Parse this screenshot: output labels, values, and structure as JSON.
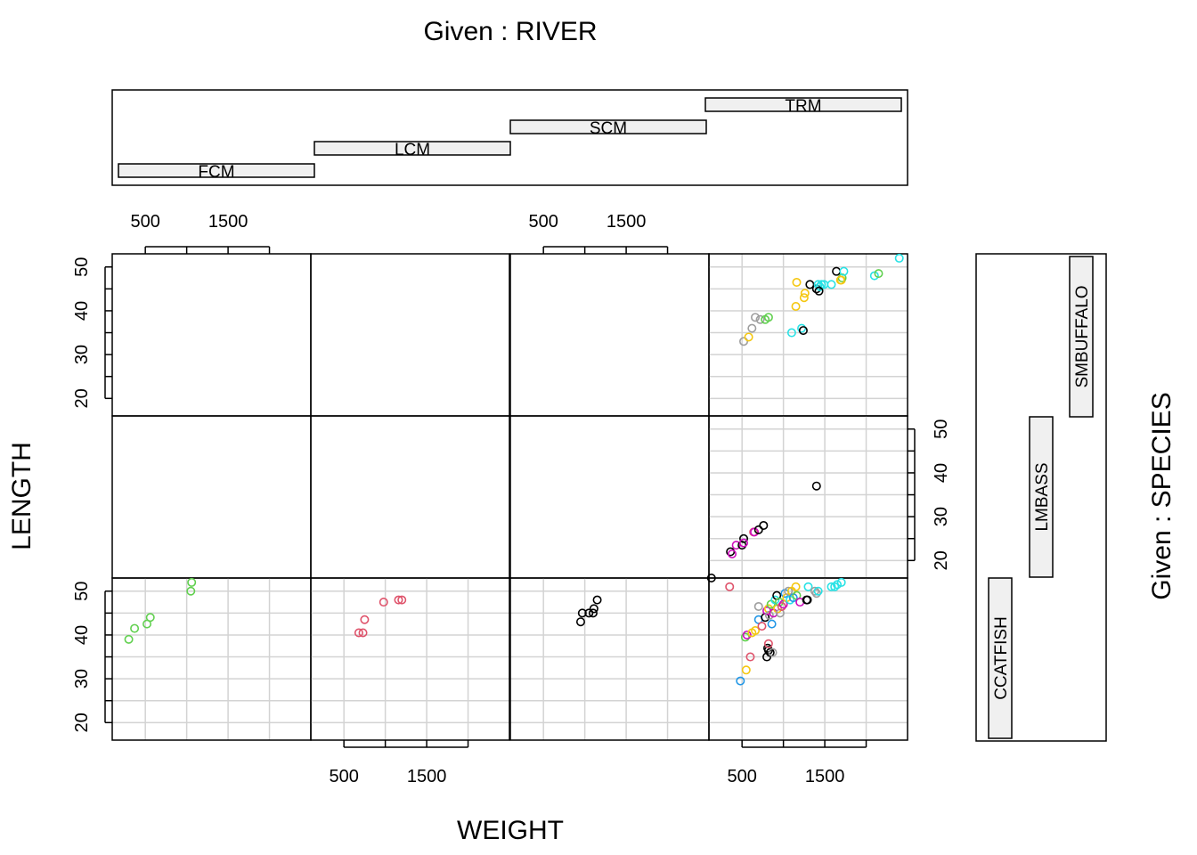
{
  "chart_data": {
    "type": "scatter",
    "layout": "coplot",
    "title_top": "Given : RIVER",
    "title_right": "Given : SPECIES",
    "xlabel": "WEIGHT",
    "ylabel": "LENGTH",
    "xlim": [
      100,
      2500
    ],
    "ylim": [
      16,
      53
    ],
    "x_ticks": [
      500,
      1000,
      1500,
      2000
    ],
    "x_tick_labels": [
      "500",
      "1500"
    ],
    "y_ticks": [
      20,
      25,
      30,
      35,
      40,
      45,
      50
    ],
    "y_tick_labels": [
      "20",
      "30",
      "40",
      "50"
    ],
    "grid": true,
    "river_levels": [
      "FCM",
      "LCM",
      "SCM",
      "TRM"
    ],
    "species_levels": [
      "CCATFISH",
      "LMBASS",
      "SMBUFFALO"
    ],
    "panels": [
      {
        "river": "FCM",
        "species": "CCATFISH",
        "points": [
          {
            "x": 300,
            "y": 39,
            "c": "#61D04F"
          },
          {
            "x": 370,
            "y": 41.5,
            "c": "#61D04F"
          },
          {
            "x": 520,
            "y": 42.5,
            "c": "#61D04F"
          },
          {
            "x": 560,
            "y": 44,
            "c": "#61D04F"
          },
          {
            "x": 1050,
            "y": 50,
            "c": "#61D04F"
          },
          {
            "x": 1060,
            "y": 52,
            "c": "#61D04F"
          }
        ]
      },
      {
        "river": "LCM",
        "species": "CCATFISH",
        "points": [
          {
            "x": 680,
            "y": 40.5,
            "c": "#DF536B"
          },
          {
            "x": 730,
            "y": 40.5,
            "c": "#DF536B"
          },
          {
            "x": 750,
            "y": 43.5,
            "c": "#DF536B"
          },
          {
            "x": 980,
            "y": 47.5,
            "c": "#DF536B"
          },
          {
            "x": 1160,
            "y": 48,
            "c": "#DF536B"
          },
          {
            "x": 1200,
            "y": 48,
            "c": "#DF536B"
          }
        ]
      },
      {
        "river": "SCM",
        "species": "CCATFISH",
        "points": [
          {
            "x": 950,
            "y": 43,
            "c": "#000000"
          },
          {
            "x": 970,
            "y": 45,
            "c": "#000000"
          },
          {
            "x": 1050,
            "y": 45,
            "c": "#000000"
          },
          {
            "x": 1100,
            "y": 45,
            "c": "#000000"
          },
          {
            "x": 1110,
            "y": 46,
            "c": "#000000"
          },
          {
            "x": 1150,
            "y": 48,
            "c": "#000000"
          }
        ]
      },
      {
        "river": "TRM",
        "species": "CCATFISH",
        "points": [
          {
            "x": 480,
            "y": 29.5,
            "c": "#2297E6"
          },
          {
            "x": 550,
            "y": 32,
            "c": "#F5C710"
          },
          {
            "x": 600,
            "y": 35,
            "c": "#DF536B"
          },
          {
            "x": 350,
            "y": 51,
            "c": "#DF536B"
          },
          {
            "x": 540,
            "y": 39.5,
            "c": "#61D04F"
          },
          {
            "x": 560,
            "y": 40,
            "c": "#CD0BBC"
          },
          {
            "x": 620,
            "y": 40.5,
            "c": "#F5C710"
          },
          {
            "x": 660,
            "y": 41,
            "c": "#F5C710"
          },
          {
            "x": 700,
            "y": 43.5,
            "c": "#2297E6"
          },
          {
            "x": 700,
            "y": 46.5,
            "c": "#9E9E9E"
          },
          {
            "x": 740,
            "y": 42,
            "c": "#DF536B"
          },
          {
            "x": 780,
            "y": 44,
            "c": "#000000"
          },
          {
            "x": 800,
            "y": 45.5,
            "c": "#CD0BBC"
          },
          {
            "x": 820,
            "y": 46,
            "c": "#F5C710"
          },
          {
            "x": 830,
            "y": 44.5,
            "c": "#9E9E9E"
          },
          {
            "x": 850,
            "y": 47,
            "c": "#61D04F"
          },
          {
            "x": 860,
            "y": 42.5,
            "c": "#2297E6"
          },
          {
            "x": 880,
            "y": 45,
            "c": "#CD0BBC"
          },
          {
            "x": 900,
            "y": 48,
            "c": "#28E2E5"
          },
          {
            "x": 920,
            "y": 49,
            "c": "#000000"
          },
          {
            "x": 930,
            "y": 46,
            "c": "#F5C710"
          },
          {
            "x": 950,
            "y": 47.5,
            "c": "#61D04F"
          },
          {
            "x": 960,
            "y": 45,
            "c": "#9E9E9E"
          },
          {
            "x": 980,
            "y": 46.5,
            "c": "#DF536B"
          },
          {
            "x": 1000,
            "y": 47,
            "c": "#CD0BBC"
          },
          {
            "x": 1020,
            "y": 49.5,
            "c": "#2297E6"
          },
          {
            "x": 1040,
            "y": 48.5,
            "c": "#F5C710"
          },
          {
            "x": 1060,
            "y": 50,
            "c": "#9E9E9E"
          },
          {
            "x": 1080,
            "y": 48,
            "c": "#28E2E5"
          },
          {
            "x": 1100,
            "y": 50,
            "c": "#F5C710"
          },
          {
            "x": 1120,
            "y": 48.5,
            "c": "#2297E6"
          },
          {
            "x": 1150,
            "y": 51,
            "c": "#F5C710"
          },
          {
            "x": 1160,
            "y": 49,
            "c": "#61D04F"
          },
          {
            "x": 1200,
            "y": 47.5,
            "c": "#CD0BBC"
          },
          {
            "x": 1280,
            "y": 48,
            "c": "#000000"
          },
          {
            "x": 1290,
            "y": 48,
            "c": "#000000"
          },
          {
            "x": 1300,
            "y": 51,
            "c": "#28E2E5"
          },
          {
            "x": 1380,
            "y": 50,
            "c": "#9E9E9E"
          },
          {
            "x": 1400,
            "y": 49.5,
            "c": "#9E9E9E"
          },
          {
            "x": 1420,
            "y": 50,
            "c": "#28E2E5"
          },
          {
            "x": 1580,
            "y": 51,
            "c": "#28E2E5"
          },
          {
            "x": 1620,
            "y": 51,
            "c": "#28E2E5"
          },
          {
            "x": 1650,
            "y": 51.5,
            "c": "#28E2E5"
          },
          {
            "x": 1700,
            "y": 52,
            "c": "#28E2E5"
          },
          {
            "x": 810,
            "y": 37,
            "c": "#000000"
          },
          {
            "x": 820,
            "y": 36.5,
            "c": "#000000"
          },
          {
            "x": 840,
            "y": 36,
            "c": "#000000"
          },
          {
            "x": 800,
            "y": 35,
            "c": "#000000"
          },
          {
            "x": 870,
            "y": 36,
            "c": "#9E9E9E"
          },
          {
            "x": 820,
            "y": 38,
            "c": "#DF536B"
          }
        ]
      },
      {
        "river": "TRM",
        "species": "LMBASS",
        "points": [
          {
            "x": 130,
            "y": 16,
            "c": "#000000"
          },
          {
            "x": 360,
            "y": 22,
            "c": "#000000"
          },
          {
            "x": 380,
            "y": 21.5,
            "c": "#CD0BBC"
          },
          {
            "x": 430,
            "y": 23.5,
            "c": "#CD0BBC"
          },
          {
            "x": 500,
            "y": 23.5,
            "c": "#000000"
          },
          {
            "x": 520,
            "y": 25,
            "c": "#000000"
          },
          {
            "x": 520,
            "y": 24,
            "c": "#CD0BBC"
          },
          {
            "x": 640,
            "y": 26.5,
            "c": "#DF536B"
          },
          {
            "x": 650,
            "y": 26.5,
            "c": "#CD0BBC"
          },
          {
            "x": 700,
            "y": 27,
            "c": "#000000"
          },
          {
            "x": 760,
            "y": 28,
            "c": "#000000"
          },
          {
            "x": 1400,
            "y": 37,
            "c": "#000000"
          }
        ]
      },
      {
        "river": "TRM",
        "species": "SMBUFFALO",
        "points": [
          {
            "x": 520,
            "y": 33,
            "c": "#9E9E9E"
          },
          {
            "x": 580,
            "y": 34,
            "c": "#F5C710"
          },
          {
            "x": 620,
            "y": 36,
            "c": "#9E9E9E"
          },
          {
            "x": 660,
            "y": 38.5,
            "c": "#9E9E9E"
          },
          {
            "x": 720,
            "y": 38,
            "c": "#9E9E9E"
          },
          {
            "x": 780,
            "y": 38,
            "c": "#61D04F"
          },
          {
            "x": 820,
            "y": 38.5,
            "c": "#61D04F"
          },
          {
            "x": 1100,
            "y": 35,
            "c": "#28E2E5"
          },
          {
            "x": 1150,
            "y": 41,
            "c": "#F5C710"
          },
          {
            "x": 1160,
            "y": 46.5,
            "c": "#F5C710"
          },
          {
            "x": 1220,
            "y": 36,
            "c": "#28E2E5"
          },
          {
            "x": 1240,
            "y": 35.5,
            "c": "#000000"
          },
          {
            "x": 1250,
            "y": 43,
            "c": "#F5C710"
          },
          {
            "x": 1260,
            "y": 44,
            "c": "#F5C710"
          },
          {
            "x": 1320,
            "y": 46,
            "c": "#000000"
          },
          {
            "x": 1400,
            "y": 45,
            "c": "#000000"
          },
          {
            "x": 1420,
            "y": 46,
            "c": "#28E2E5"
          },
          {
            "x": 1440,
            "y": 45.5,
            "c": "#28E2E5"
          },
          {
            "x": 1460,
            "y": 46,
            "c": "#28E2E5"
          },
          {
            "x": 1490,
            "y": 46,
            "c": "#28E2E5"
          },
          {
            "x": 1580,
            "y": 46,
            "c": "#28E2E5"
          },
          {
            "x": 1640,
            "y": 49,
            "c": "#000000"
          },
          {
            "x": 1700,
            "y": 47,
            "c": "#F5C710"
          },
          {
            "x": 1710,
            "y": 47.5,
            "c": "#61D04F"
          },
          {
            "x": 1730,
            "y": 49,
            "c": "#28E2E5"
          },
          {
            "x": 2100,
            "y": 48,
            "c": "#28E2E5"
          },
          {
            "x": 2150,
            "y": 48.5,
            "c": "#61D04F"
          },
          {
            "x": 2400,
            "y": 52,
            "c": "#28E2E5"
          },
          {
            "x": 1690,
            "y": 47,
            "c": "#F5C710"
          },
          {
            "x": 1430,
            "y": 44.5,
            "c": "#000000"
          }
        ]
      }
    ]
  }
}
